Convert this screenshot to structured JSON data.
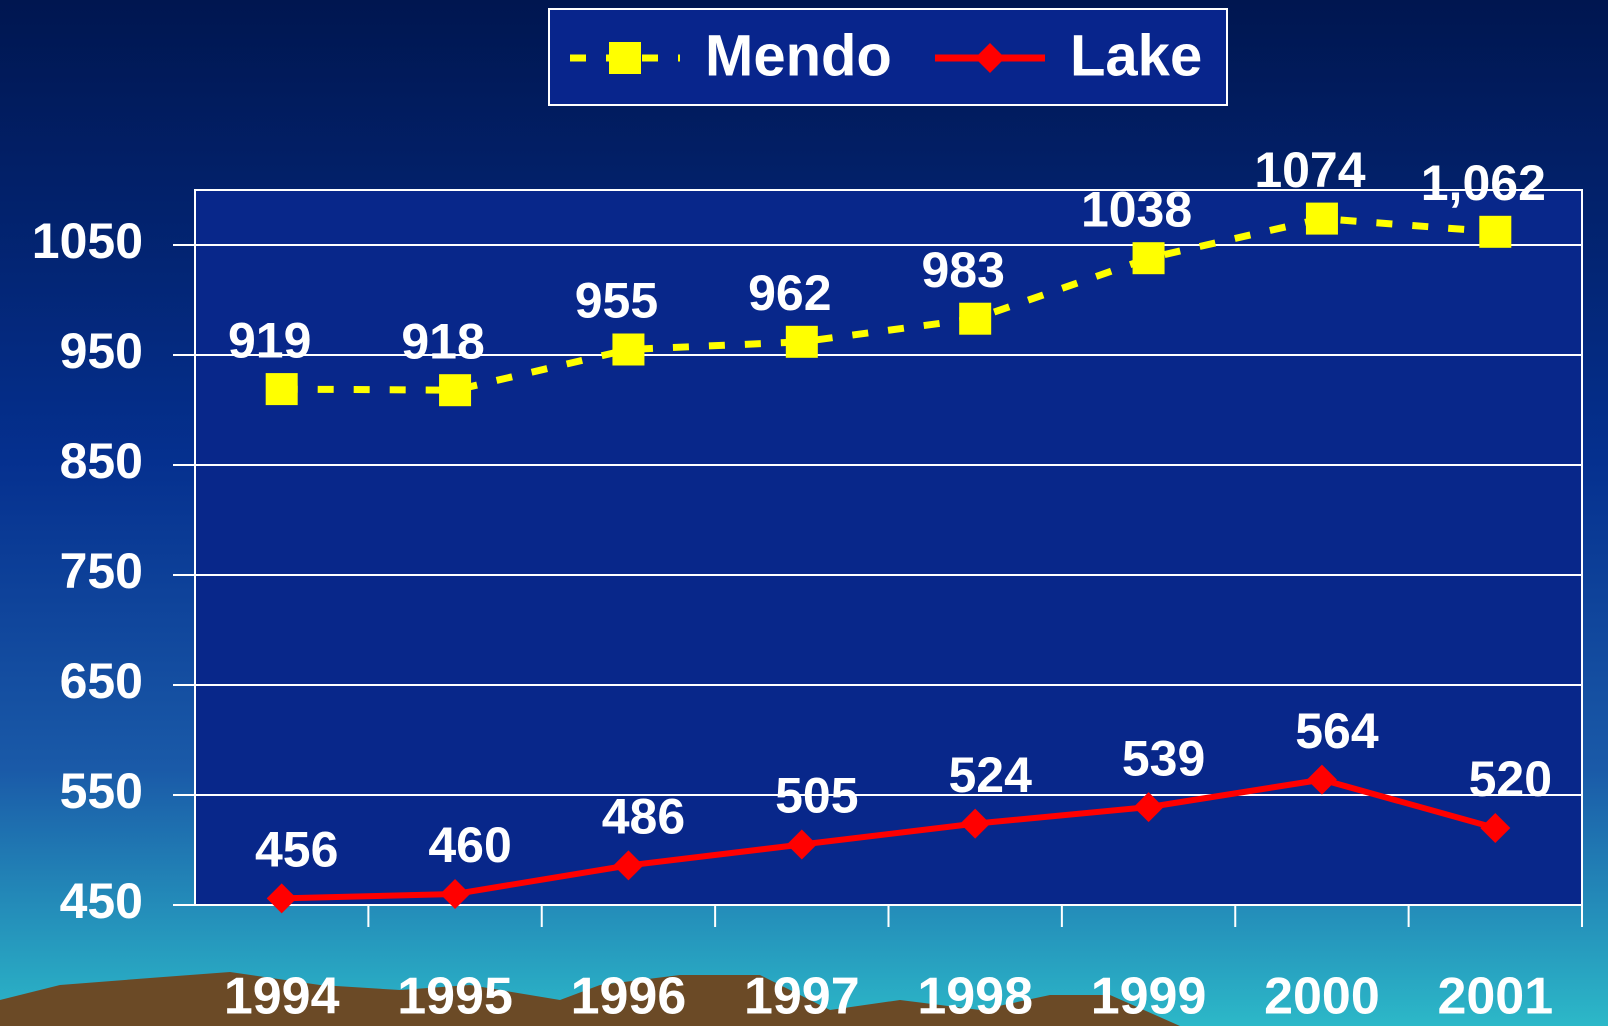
{
  "chart_data": {
    "type": "line",
    "categories": [
      "1994",
      "1995",
      "1996",
      "1997",
      "1998",
      "1999",
      "2000",
      "2001"
    ],
    "series": [
      {
        "name": "Mendo",
        "color": "#ffff00",
        "values": [
          919,
          918,
          955,
          962,
          983,
          1038,
          1074,
          1062
        ],
        "value_labels": [
          "919",
          "918",
          "955",
          "962",
          "983",
          "1038",
          "1074",
          "1,062"
        ]
      },
      {
        "name": "Lake",
        "color": "#ff0000",
        "values": [
          456,
          460,
          486,
          505,
          524,
          539,
          564,
          520
        ]
      }
    ],
    "ylim": [
      450,
      1100
    ],
    "yticks": [
      450,
      550,
      650,
      750,
      850,
      950,
      1050
    ],
    "grid": true,
    "legend": "top"
  }
}
